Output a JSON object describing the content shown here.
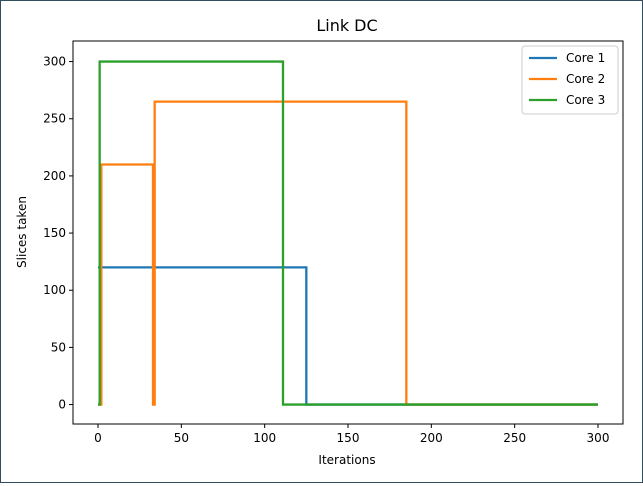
{
  "chart_data": {
    "type": "line",
    "title": "Link DC",
    "xlabel": "Iterations",
    "ylabel": "Slices taken",
    "xlim": [
      -15,
      315
    ],
    "ylim": [
      -17,
      318
    ],
    "xticks": [
      0,
      50,
      100,
      150,
      200,
      250,
      300
    ],
    "yticks": [
      0,
      50,
      100,
      150,
      200,
      250,
      300
    ],
    "grid": false,
    "legend_position": "top-right",
    "series": [
      {
        "name": "Core 1",
        "color": "#1f77b4",
        "x": [
          0,
          125,
          125,
          300
        ],
        "y": [
          120,
          120,
          0,
          0
        ]
      },
      {
        "name": "Core 2",
        "color": "#ff7f0e",
        "x": [
          0,
          2,
          2,
          33,
          33,
          34,
          34,
          185,
          185,
          300
        ],
        "y": [
          0,
          0,
          210,
          210,
          0,
          0,
          265,
          265,
          0,
          0
        ]
      },
      {
        "name": "Core 3",
        "color": "#2ca02c",
        "x": [
          0,
          1,
          1,
          111,
          111,
          300
        ],
        "y": [
          0,
          0,
          300,
          300,
          0,
          0
        ]
      }
    ]
  }
}
